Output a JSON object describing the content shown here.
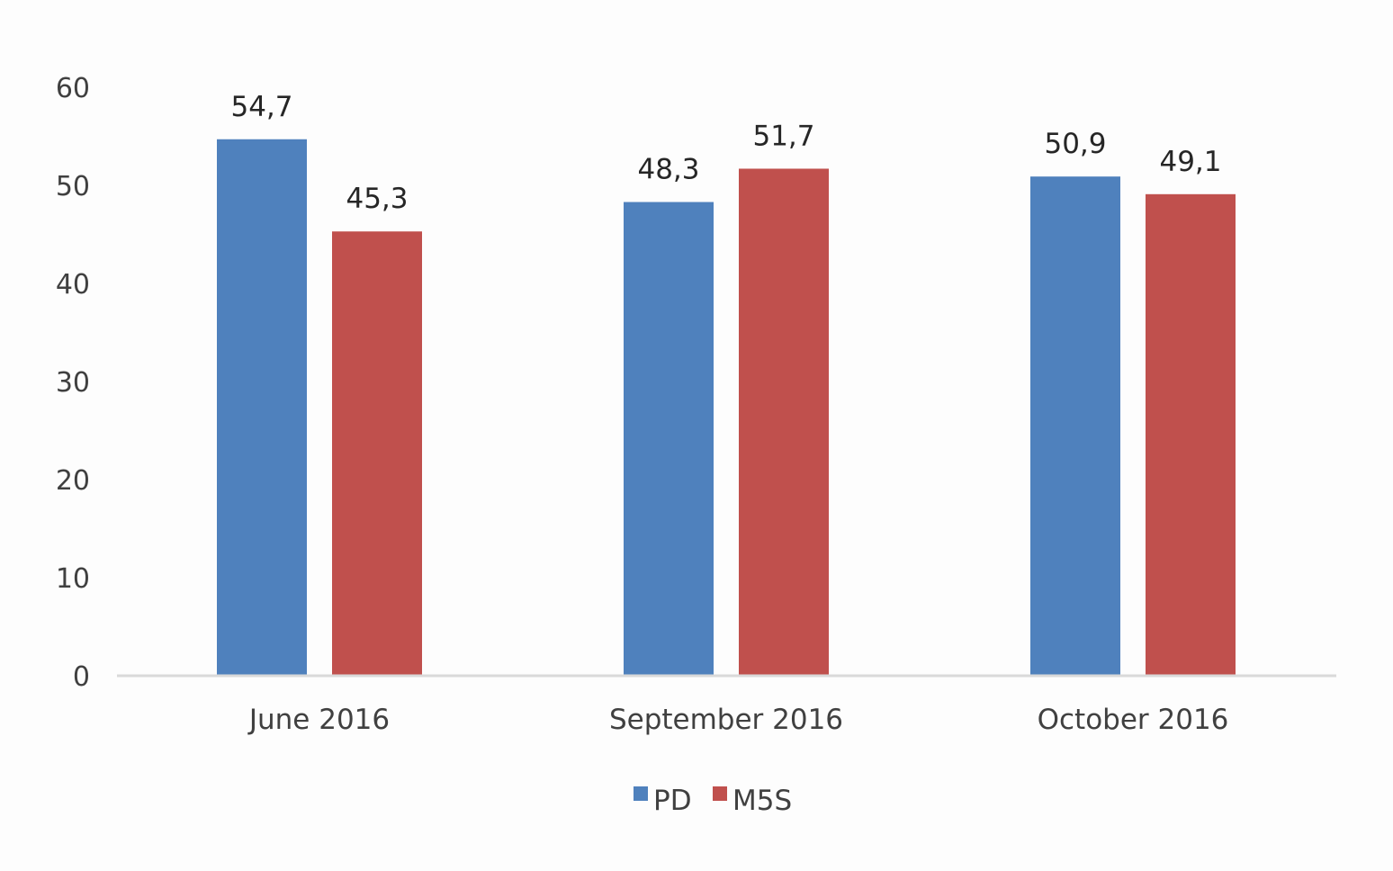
{
  "chart_data": {
    "type": "bar",
    "title": "",
    "xlabel": "",
    "ylabel": "",
    "categories": [
      "June 2016",
      "September 2016",
      "October 2016"
    ],
    "series": [
      {
        "name": "PD",
        "values": [
          54.7,
          48.3,
          50.9
        ],
        "labels": [
          "54,7",
          "48,3",
          "50,9"
        ],
        "color": "#4f81bd"
      },
      {
        "name": "M5S",
        "values": [
          45.3,
          51.7,
          49.1
        ],
        "labels": [
          "45,3",
          "51,7",
          "49,1"
        ],
        "color": "#c0504d"
      }
    ],
    "ylim": [
      0,
      60
    ],
    "yticks": [
      0,
      10,
      20,
      30,
      40,
      50,
      60
    ],
    "ytick_labels": [
      "0",
      "10",
      "20",
      "30",
      "40",
      "50",
      "60"
    ],
    "grid": false,
    "legend": "bottom-center",
    "axis_color": "#d9d9d9",
    "background": "#fdfdfd"
  }
}
